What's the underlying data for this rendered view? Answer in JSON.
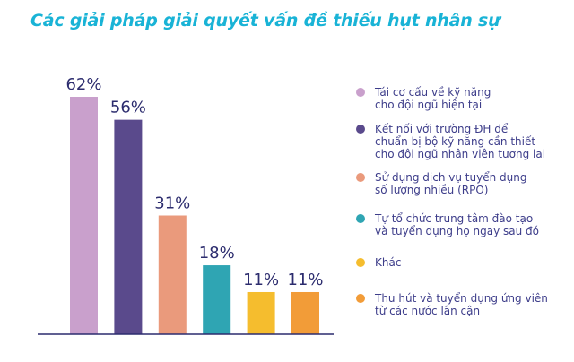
{
  "chart_data": {
    "type": "bar",
    "title": "Các giải pháp giải quyết vấn đề thiếu hụt nhân sự",
    "value_suffix": "%",
    "categories": [
      "Tái cơ cấu về kỹ năng cho đội ngũ hiện tại",
      "Kết nối với trường ĐH để chuẩn bị bộ kỹ năng cần thiết cho đội ngũ nhân viên tương lai",
      "Sử dụng dịch vụ tuyển dụng số lượng nhiều (RPO)",
      "Tự tổ chức trung tâm đào tạo và tuyển dụng họ ngay sau đó",
      "Khác",
      "Thu hút và tuyển dụng ứng viên từ các nước lân cận"
    ],
    "values": [
      62,
      56,
      31,
      18,
      11,
      11
    ],
    "value_labels": [
      "62%",
      "56%",
      "31%",
      "18%",
      "11%",
      "11%"
    ],
    "colors": [
      "#c9a0cc",
      "#5a4a8c",
      "#ea9a7c",
      "#2fa5b3",
      "#f5bd2e",
      "#f29c38"
    ],
    "legend": [
      {
        "lines": [
          "Tái cơ cấu về kỹ năng",
          "cho đội ngũ hiện tại"
        ],
        "color": "#c9a0cc"
      },
      {
        "lines": [
          "Kết nối với trường ĐH để",
          "chuẩn bị bộ kỹ năng cần thiết",
          "cho đội ngũ nhân viên tương lai"
        ],
        "color": "#5a4a8c"
      },
      {
        "lines": [
          "Sử dụng dịch vụ tuyển dụng",
          "số lượng nhiều (RPO)"
        ],
        "color": "#ea9a7c"
      },
      {
        "lines": [
          "Tự tổ chức trung tâm đào tạo",
          "và tuyển dụng họ ngay sau đó"
        ],
        "color": "#2fa5b3"
      },
      {
        "lines": [
          "Khác"
        ],
        "color": "#f5bd2e"
      },
      {
        "lines": [
          "Thu hút và tuyển dụng ứng viên",
          "từ các nước lân cận"
        ],
        "color": "#f29c38"
      }
    ],
    "ylim": [
      0,
      70
    ],
    "grid": false,
    "legend_position": "right",
    "axis_color": "#2c2c6e"
  }
}
